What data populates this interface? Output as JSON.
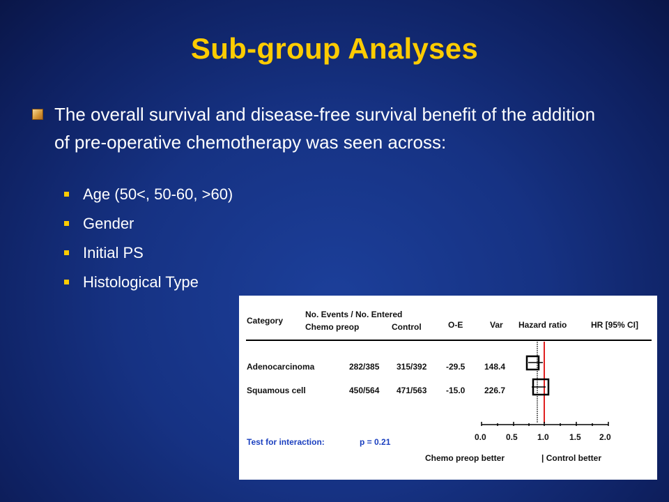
{
  "slide": {
    "title": "Sub-group Analyses",
    "lead": "The overall survival and disease-free survival benefit of the addition of pre-operative chemotherapy was seen across:",
    "bullets": [
      "Age (50<, 50-60, >60)",
      "Gender",
      "Initial PS",
      "Histological Type"
    ]
  },
  "table": {
    "headers": {
      "category": "Category",
      "events_top": "No. Events / No. Entered",
      "chemo": "Chemo preop",
      "control": "Control",
      "oe": "O-E",
      "var": "Var",
      "hazard": "Hazard ratio",
      "hrci": "HR [95% CI]"
    },
    "rows": [
      {
        "category": "Adenocarcinoma",
        "chemo": "282/385",
        "control": "315/392",
        "oe": "-29.5",
        "var": "148.4"
      },
      {
        "category": "Squamous cell",
        "chemo": "450/564",
        "control": "471/563",
        "oe": "-15.0",
        "var": "226.7"
      }
    ],
    "interaction": {
      "label": "Test for interaction:",
      "value": "p = 0.21"
    },
    "axis_ticks": [
      "0.0",
      "0.5",
      "1.0",
      "1.5",
      "2.0"
    ],
    "axis_caption_left": "Chemo preop better",
    "axis_caption_right": "| Control better",
    "colors": {
      "title": "#ffcc00",
      "reference_line": "#e02020",
      "interaction_text": "#1a3fbf"
    }
  }
}
